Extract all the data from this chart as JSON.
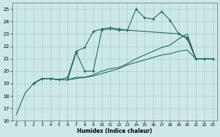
{
  "xlabel": "Humidex (Indice chaleur)",
  "bg_color": "#cce8e8",
  "grid_color": "#aacccc",
  "line_color": "#1a6655",
  "xlim": [
    -0.5,
    23.5
  ],
  "ylim": [
    16,
    25.5
  ],
  "xticks": [
    0,
    1,
    2,
    3,
    4,
    5,
    6,
    7,
    8,
    9,
    10,
    11,
    12,
    13,
    14,
    15,
    16,
    17,
    18,
    19,
    20,
    21,
    22,
    23
  ],
  "yticks": [
    16,
    17,
    18,
    19,
    20,
    21,
    22,
    23,
    24,
    25
  ],
  "series": [
    {
      "x": [
        0,
        1,
        2,
        3,
        4,
        5,
        6,
        7,
        8,
        9,
        10,
        11,
        12,
        13,
        14,
        15,
        16,
        17,
        18,
        19,
        20,
        21,
        22,
        23
      ],
      "y": [
        16.5,
        18.2,
        19.0,
        19.4,
        19.4,
        19.3,
        19.3,
        19.4,
        19.5,
        19.6,
        19.8,
        20.0,
        20.2,
        20.5,
        20.7,
        20.9,
        21.1,
        21.3,
        21.4,
        21.6,
        21.7,
        21.0,
        21.0,
        21.0
      ],
      "marker": false
    },
    {
      "x": [
        2,
        3,
        4,
        5,
        6,
        7,
        8,
        9,
        10,
        11,
        12,
        13,
        14,
        15,
        16,
        17,
        18,
        19,
        20,
        21,
        22,
        23
      ],
      "y": [
        19.0,
        19.4,
        19.4,
        19.3,
        19.3,
        19.5,
        19.5,
        19.7,
        20.0,
        20.2,
        20.3,
        20.6,
        21.0,
        21.3,
        21.6,
        21.9,
        22.1,
        22.6,
        23.0,
        21.0,
        21.0,
        21.0
      ],
      "marker": false
    },
    {
      "x": [
        2,
        3,
        4,
        5,
        6,
        7,
        8,
        9,
        10,
        11,
        12,
        13,
        19,
        20,
        21,
        22,
        23
      ],
      "y": [
        19.0,
        19.4,
        19.4,
        19.3,
        19.3,
        21.5,
        20.0,
        20.0,
        23.3,
        23.4,
        23.3,
        23.3,
        23.0,
        22.6,
        21.0,
        21.0,
        21.0
      ],
      "marker": true
    },
    {
      "x": [
        2,
        3,
        4,
        5,
        6,
        7,
        8,
        9,
        10,
        11,
        12,
        13,
        14,
        15,
        16,
        17,
        18,
        19,
        20,
        21,
        22,
        23
      ],
      "y": [
        19.0,
        19.4,
        19.4,
        19.3,
        19.5,
        21.6,
        21.9,
        23.2,
        23.4,
        23.5,
        23.4,
        23.3,
        25.0,
        24.3,
        24.2,
        24.8,
        24.1,
        23.0,
        22.7,
        21.0,
        21.0,
        21.0
      ],
      "marker": true
    }
  ]
}
